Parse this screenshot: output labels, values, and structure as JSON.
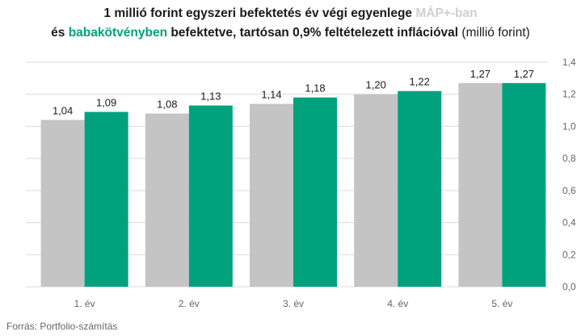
{
  "title": {
    "line1_prefix": "1 millió forint egyszeri befektetés  év végi egyenlege ",
    "line1_highlight": "MÁP+-ban",
    "line2_prefix": "és ",
    "line2_highlight": "babakötvényben",
    "line2_middle": " befektetve, tartósan 0,9% feltételezett inflációval ",
    "line2_unit": "(millió forint)"
  },
  "source": "Forrás: Portfolio-számítás",
  "colors": {
    "mapp": "#c4c4c4",
    "baba": "#00a27e",
    "grid": "#d9d9d9",
    "axis_text": "#666666",
    "label_text": "#1a1a1a"
  },
  "chart_data": {
    "type": "bar",
    "categories": [
      "1. év",
      "2. év",
      "3. év",
      "4. év",
      "5. év"
    ],
    "series": [
      {
        "name": "MÁP+-ban",
        "values": [
          1.04,
          1.08,
          1.14,
          1.2,
          1.27
        ],
        "labels": [
          "1,04",
          "1,08",
          "1,14",
          "1,20",
          "1,27"
        ]
      },
      {
        "name": "babakötvényben",
        "values": [
          1.09,
          1.13,
          1.18,
          1.22,
          1.27
        ],
        "labels": [
          "1,09",
          "1,13",
          "1,18",
          "1,22",
          "1,27"
        ]
      }
    ],
    "ylim": [
      0,
      1.4
    ],
    "yticks": [
      0,
      0.2,
      0.4,
      0.6,
      0.8,
      1.0,
      1.2,
      1.4
    ],
    "ytick_labels": [
      "0,0",
      "0,2",
      "0,4",
      "0,6",
      "0,8",
      "1,0",
      "1,2",
      "1,4"
    ],
    "y_axis_side": "right",
    "grid": true,
    "legend": "none"
  }
}
